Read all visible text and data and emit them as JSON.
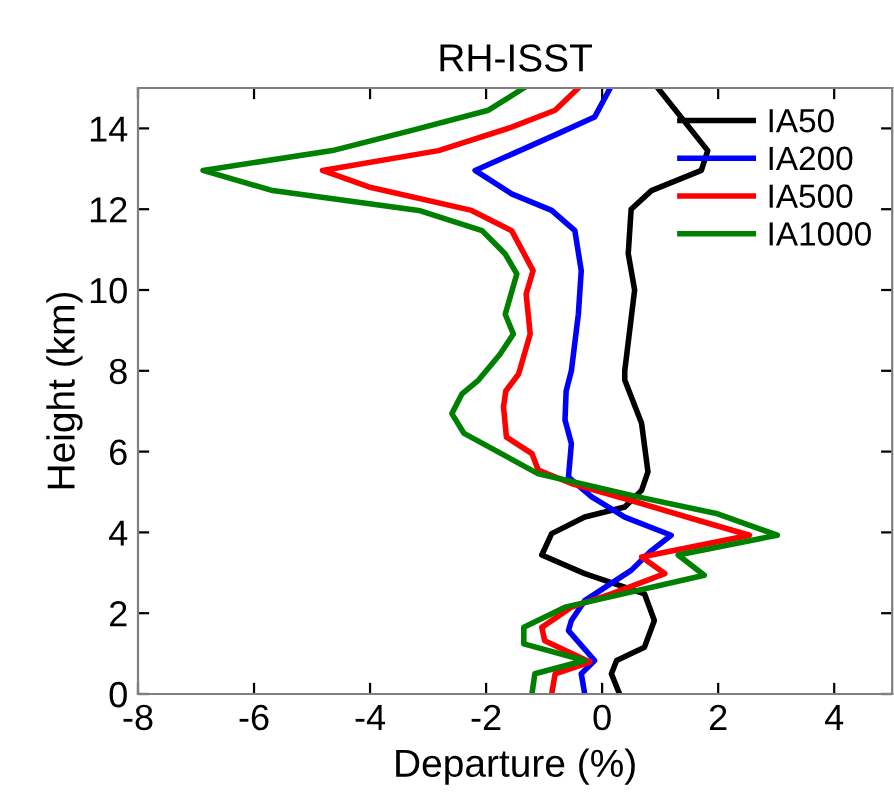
{
  "chart_data": {
    "type": "line",
    "title": "RH-ISST",
    "xlabel": "Departure (%)",
    "ylabel": "Height (km)",
    "xlim": [
      -8,
      5
    ],
    "xticks": [
      -8,
      -6,
      -4,
      -2,
      0,
      2,
      4
    ],
    "ylim": [
      0,
      15
    ],
    "yticks": [
      0,
      2,
      4,
      6,
      8,
      10,
      12,
      14
    ],
    "grid": false,
    "legend": "top right",
    "marker": "none",
    "line_style": "solid",
    "series": [
      {
        "name": "IA50",
        "color": "#000000",
        "x": [
          0.96,
          1.82,
          1.71,
          0.85,
          0.5,
          0.45,
          0.56,
          0.39,
          0.39,
          0.68,
          0.79,
          0.68,
          0.39,
          -0.3,
          -0.87,
          -1.04,
          -0.3,
          0.73,
          0.9,
          0.73,
          0.25,
          0.16,
          0.3
        ],
        "values": [
          15,
          13.45,
          12.96,
          12.46,
          12.0,
          10.9,
          10.0,
          8.0,
          7.77,
          6.7,
          5.5,
          5.04,
          4.63,
          4.38,
          3.97,
          3.44,
          2.98,
          2.48,
          1.82,
          1.16,
          0.83,
          0.5,
          0
        ]
      },
      {
        "name": "IA200",
        "color": "#0000ff",
        "x": [
          0.14,
          -0.13,
          -0.76,
          -1.67,
          -2.19,
          -1.56,
          -0.87,
          -0.47,
          -0.36,
          -0.41,
          -0.53,
          -0.62,
          -0.64,
          -0.53,
          -0.58,
          -0.18,
          0.39,
          1.19,
          0.85,
          0.5,
          0.05,
          -0.3,
          -0.53,
          -0.58,
          -0.13,
          -0.36,
          -0.3
        ],
        "values": [
          15,
          14.28,
          13.87,
          13.29,
          12.96,
          12.38,
          11.97,
          11.47,
          10.48,
          9.4,
          8.0,
          7.5,
          6.78,
          6.2,
          5.37,
          4.88,
          4.38,
          3.93,
          3.55,
          3.06,
          2.64,
          2.31,
          1.82,
          1.57,
          0.83,
          0.5,
          0
        ]
      },
      {
        "name": "IA500",
        "color": "#ff0000",
        "x": [
          -0.41,
          -0.81,
          -1.56,
          -2.82,
          -4.82,
          -4.02,
          -2.25,
          -1.56,
          -1.19,
          -1.31,
          -1.24,
          -1.44,
          -1.66,
          -1.7,
          -1.65,
          -1.21,
          -1.1,
          -0.53,
          0.5,
          1.65,
          2.54,
          0.68,
          1.08,
          0.16,
          -0.53,
          -1.04,
          -0.99,
          -0.21,
          -0.81,
          -0.87
        ],
        "values": [
          15,
          14.45,
          14.03,
          13.45,
          12.96,
          12.55,
          11.97,
          11.47,
          10.48,
          9.9,
          8.91,
          7.92,
          7.5,
          7.11,
          6.36,
          5.95,
          5.54,
          5.21,
          4.79,
          4.3,
          3.93,
          3.39,
          2.98,
          2.48,
          2.15,
          1.65,
          1.32,
          0.79,
          0.5,
          0
        ]
      },
      {
        "name": "IA1000",
        "color": "#008000",
        "x": [
          -1.35,
          -1.96,
          -3.28,
          -4.65,
          -6.88,
          -5.68,
          -3.16,
          -2.07,
          -1.67,
          -1.47,
          -1.67,
          -1.53,
          -1.76,
          -2.13,
          -2.42,
          -2.59,
          -2.38,
          -1.1,
          0.62,
          1.99,
          3.02,
          1.31,
          1.76,
          -0.64,
          -1.35,
          -1.35,
          -0.3,
          -1.16,
          -1.21
        ],
        "values": [
          15,
          14.45,
          13.95,
          13.45,
          12.96,
          12.46,
          11.97,
          11.47,
          10.89,
          10.4,
          9.4,
          8.91,
          8.41,
          7.77,
          7.42,
          6.94,
          6.45,
          5.45,
          4.88,
          4.46,
          3.93,
          3.44,
          2.94,
          2.15,
          1.65,
          1.24,
          0.83,
          0.5,
          0
        ]
      }
    ]
  }
}
